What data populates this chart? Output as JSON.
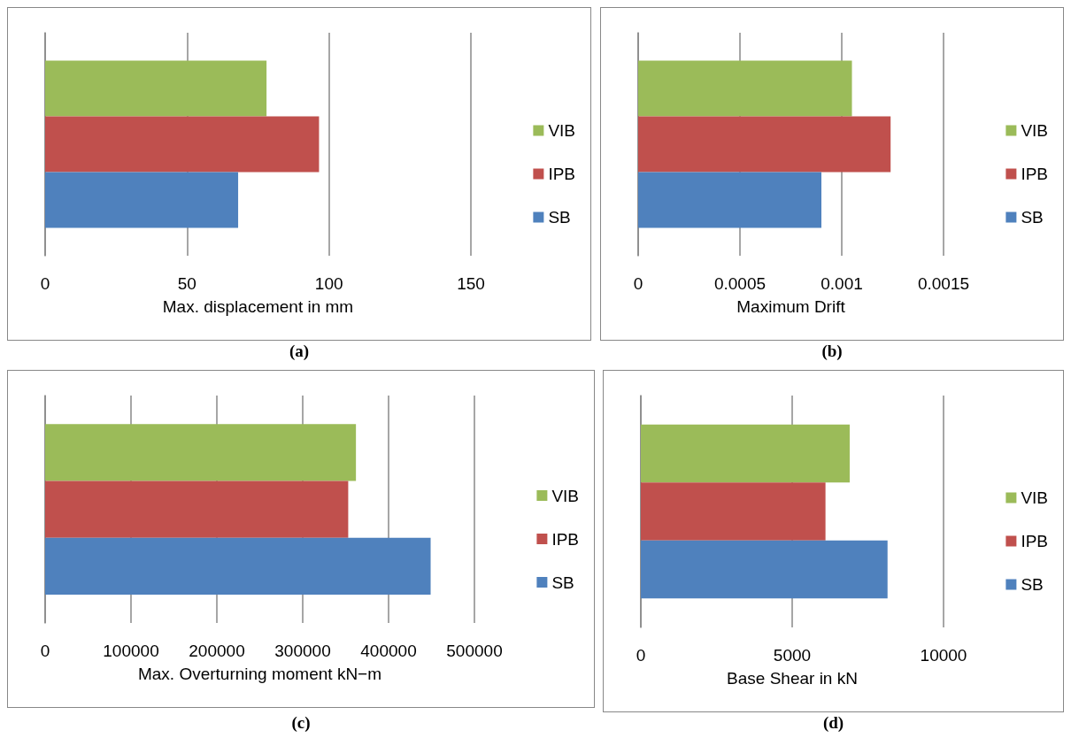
{
  "chart_data": [
    {
      "type": "bar",
      "orientation": "horizontal",
      "categories": [
        null
      ],
      "xlabel": "Max. displacement in mm",
      "annotations": [
        "(a)"
      ],
      "xlim": [
        0,
        150
      ],
      "xticks": [
        0,
        50,
        100,
        150
      ],
      "grid": "x",
      "legend": "right",
      "series": [
        {
          "name": "VIB",
          "color": "#9bbb59",
          "values": [
            78
          ]
        },
        {
          "name": "IPB",
          "color": "#c0504d",
          "values": [
            96.5
          ]
        },
        {
          "name": "SB",
          "color": "#4f81bd",
          "values": [
            68
          ]
        }
      ]
    },
    {
      "type": "bar",
      "orientation": "horizontal",
      "categories": [
        null
      ],
      "xlabel": "Maximum Drift",
      "annotations": [
        "(b)"
      ],
      "xlim": [
        0,
        0.0015
      ],
      "xticks": [
        0,
        0.0005,
        0.001,
        0.0015
      ],
      "grid": "x",
      "legend": "right",
      "series": [
        {
          "name": "VIB",
          "color": "#9bbb59",
          "values": [
            0.00105
          ]
        },
        {
          "name": "IPB",
          "color": "#c0504d",
          "values": [
            0.00124
          ]
        },
        {
          "name": "SB",
          "color": "#4f81bd",
          "values": [
            0.0009
          ]
        }
      ]
    },
    {
      "type": "bar",
      "orientation": "horizontal",
      "categories": [
        null
      ],
      "xlabel": "Max. Overturning moment kN−m",
      "annotations": [
        "(c)"
      ],
      "xlim": [
        0,
        500000
      ],
      "xticks": [
        0,
        100000,
        200000,
        300000,
        400000,
        500000
      ],
      "grid": "x",
      "legend": "right",
      "series": [
        {
          "name": "VIB",
          "color": "#9bbb59",
          "values": [
            362000
          ]
        },
        {
          "name": "IPB",
          "color": "#c0504d",
          "values": [
            353000
          ]
        },
        {
          "name": "SB",
          "color": "#4f81bd",
          "values": [
            449000
          ]
        }
      ]
    },
    {
      "type": "bar",
      "orientation": "horizontal",
      "categories": [
        null
      ],
      "xlabel": "Base Shear in kN",
      "annotations": [
        "(d)"
      ],
      "xlim": [
        0,
        10000
      ],
      "xticks": [
        0,
        5000,
        10000
      ],
      "grid": "x",
      "legend": "right",
      "series": [
        {
          "name": "VIB",
          "color": "#9bbb59",
          "values": [
            6900
          ]
        },
        {
          "name": "IPB",
          "color": "#c0504d",
          "values": [
            6100
          ]
        },
        {
          "name": "SB",
          "color": "#4f81bd",
          "values": [
            8150
          ]
        }
      ]
    }
  ]
}
